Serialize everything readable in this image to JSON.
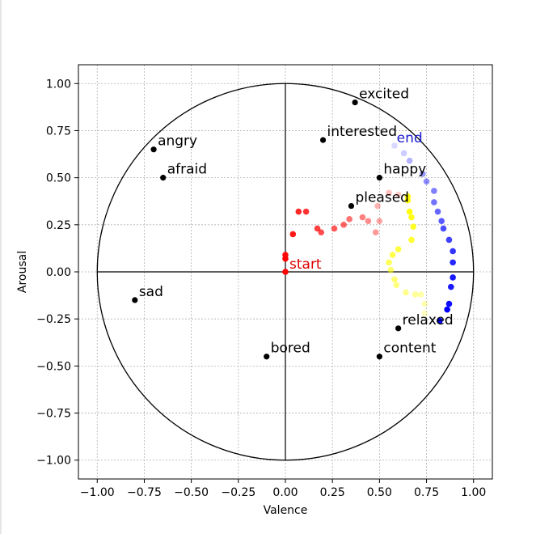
{
  "chart_data": {
    "type": "scatter",
    "title": "",
    "xlabel": "Valence",
    "ylabel": "Arousal",
    "xlim": [
      -1.1,
      1.1
    ],
    "ylim": [
      -1.1,
      1.1
    ],
    "xticks": [
      -1.0,
      -0.75,
      -0.5,
      -0.25,
      0.0,
      0.25,
      0.5,
      0.75,
      1.0
    ],
    "yticks": [
      -1.0,
      -0.75,
      -0.5,
      -0.25,
      0.0,
      0.25,
      0.5,
      0.75,
      1.0
    ],
    "xtick_labels": [
      "−1.00",
      "−0.75",
      "−0.50",
      "−0.25",
      "0.00",
      "0.25",
      "0.50",
      "0.75",
      "1.00"
    ],
    "ytick_labels": [
      "−1.00",
      "−0.75",
      "−0.50",
      "−0.25",
      "0.00",
      "0.25",
      "0.50",
      "0.75",
      "1.00"
    ],
    "grid": true,
    "unit_circle": true,
    "emotions": [
      {
        "label": "excited",
        "x": 0.37,
        "y": 0.9
      },
      {
        "label": "interested",
        "x": 0.2,
        "y": 0.7
      },
      {
        "label": "angry",
        "x": -0.7,
        "y": 0.65
      },
      {
        "label": "afraid",
        "x": -0.65,
        "y": 0.5
      },
      {
        "label": "happy",
        "x": 0.5,
        "y": 0.5
      },
      {
        "label": "pleased",
        "x": 0.35,
        "y": 0.35
      },
      {
        "label": "sad",
        "x": -0.8,
        "y": -0.15
      },
      {
        "label": "relaxed",
        "x": 0.6,
        "y": -0.3
      },
      {
        "label": "bored",
        "x": -0.1,
        "y": -0.45
      },
      {
        "label": "content",
        "x": 0.5,
        "y": -0.45
      }
    ],
    "annotations": [
      {
        "text": "start",
        "x": 0.0,
        "y": 0.0,
        "color": "#dd0000"
      },
      {
        "text": "end",
        "x": 0.57,
        "y": 0.67,
        "color": "#1a1acc"
      }
    ],
    "series": [
      {
        "color": "#ff0000",
        "points": [
          {
            "x": 0.0,
            "y": 0.0,
            "alpha": 1.0
          },
          {
            "x": 0.0,
            "y": 0.07,
            "alpha": 1.0
          },
          {
            "x": 0.0,
            "y": 0.09,
            "alpha": 0.95
          },
          {
            "x": 0.04,
            "y": 0.2,
            "alpha": 0.9
          },
          {
            "x": 0.07,
            "y": 0.32,
            "alpha": 0.85
          },
          {
            "x": 0.11,
            "y": 0.32,
            "alpha": 0.8
          },
          {
            "x": 0.17,
            "y": 0.23,
            "alpha": 0.75
          },
          {
            "x": 0.19,
            "y": 0.21,
            "alpha": 0.7
          },
          {
            "x": 0.26,
            "y": 0.23,
            "alpha": 0.65
          },
          {
            "x": 0.31,
            "y": 0.25,
            "alpha": 0.6
          },
          {
            "x": 0.34,
            "y": 0.28,
            "alpha": 0.55
          },
          {
            "x": 0.41,
            "y": 0.29,
            "alpha": 0.5
          },
          {
            "x": 0.44,
            "y": 0.27,
            "alpha": 0.45
          },
          {
            "x": 0.48,
            "y": 0.21,
            "alpha": 0.4
          },
          {
            "x": 0.5,
            "y": 0.27,
            "alpha": 0.35
          },
          {
            "x": 0.49,
            "y": 0.35,
            "alpha": 0.3
          },
          {
            "x": 0.55,
            "y": 0.42,
            "alpha": 0.25
          },
          {
            "x": 0.6,
            "y": 0.41,
            "alpha": 0.2
          }
        ]
      },
      {
        "color": "#ffff00",
        "points": [
          {
            "x": 0.65,
            "y": 0.4,
            "alpha": 1.0
          },
          {
            "x": 0.65,
            "y": 0.38,
            "alpha": 1.0
          },
          {
            "x": 0.66,
            "y": 0.32,
            "alpha": 0.95
          },
          {
            "x": 0.67,
            "y": 0.29,
            "alpha": 0.9
          },
          {
            "x": 0.68,
            "y": 0.24,
            "alpha": 0.85
          },
          {
            "x": 0.67,
            "y": 0.17,
            "alpha": 0.8
          },
          {
            "x": 0.6,
            "y": 0.12,
            "alpha": 0.75
          },
          {
            "x": 0.57,
            "y": 0.09,
            "alpha": 0.7
          },
          {
            "x": 0.55,
            "y": 0.05,
            "alpha": 0.65
          },
          {
            "x": 0.56,
            "y": 0.01,
            "alpha": 0.6
          },
          {
            "x": 0.58,
            "y": -0.04,
            "alpha": 0.55
          },
          {
            "x": 0.59,
            "y": -0.07,
            "alpha": 0.5
          },
          {
            "x": 0.64,
            "y": -0.11,
            "alpha": 0.45
          },
          {
            "x": 0.69,
            "y": -0.12,
            "alpha": 0.4
          },
          {
            "x": 0.72,
            "y": -0.12,
            "alpha": 0.35
          },
          {
            "x": 0.74,
            "y": -0.17,
            "alpha": 0.3
          },
          {
            "x": 0.74,
            "y": -0.22,
            "alpha": 0.25
          }
        ]
      },
      {
        "color": "#0000ff",
        "points": [
          {
            "x": 0.82,
            "y": -0.26,
            "alpha": 1.0
          },
          {
            "x": 0.86,
            "y": -0.2,
            "alpha": 1.0
          },
          {
            "x": 0.87,
            "y": -0.17,
            "alpha": 0.95
          },
          {
            "x": 0.88,
            "y": -0.08,
            "alpha": 0.9
          },
          {
            "x": 0.89,
            "y": -0.03,
            "alpha": 0.9
          },
          {
            "x": 0.89,
            "y": 0.05,
            "alpha": 0.85
          },
          {
            "x": 0.89,
            "y": 0.11,
            "alpha": 0.8
          },
          {
            "x": 0.87,
            "y": 0.17,
            "alpha": 0.75
          },
          {
            "x": 0.84,
            "y": 0.23,
            "alpha": 0.7
          },
          {
            "x": 0.83,
            "y": 0.27,
            "alpha": 0.65
          },
          {
            "x": 0.81,
            "y": 0.32,
            "alpha": 0.6
          },
          {
            "x": 0.79,
            "y": 0.37,
            "alpha": 0.55
          },
          {
            "x": 0.79,
            "y": 0.43,
            "alpha": 0.5
          },
          {
            "x": 0.75,
            "y": 0.48,
            "alpha": 0.45
          },
          {
            "x": 0.73,
            "y": 0.52,
            "alpha": 0.4
          },
          {
            "x": 0.66,
            "y": 0.59,
            "alpha": 0.3
          },
          {
            "x": 0.63,
            "y": 0.63,
            "alpha": 0.2
          },
          {
            "x": 0.58,
            "y": 0.67,
            "alpha": 0.15
          }
        ]
      }
    ]
  }
}
